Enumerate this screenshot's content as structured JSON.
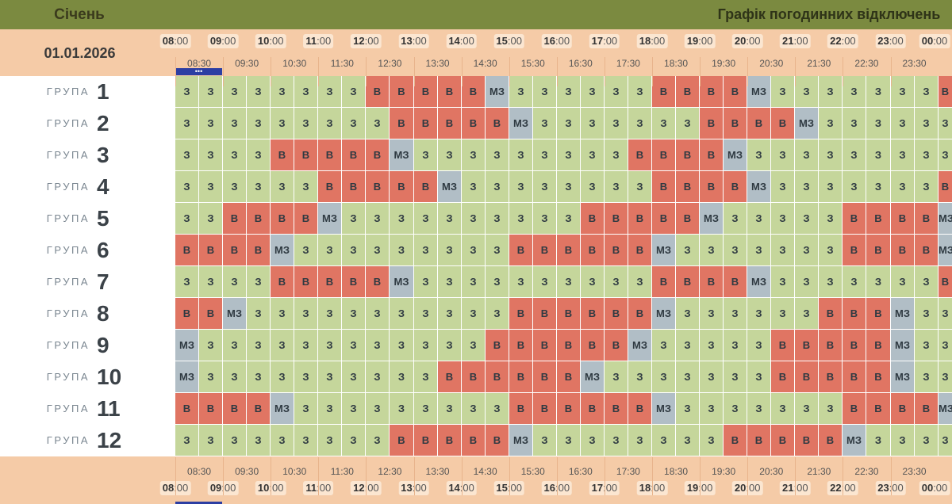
{
  "header": {
    "month": "Січень",
    "title": "Графік погодинних відключень",
    "date": "01.01.2026",
    "current_marker": "•••"
  },
  "group_label": "ГРУПА",
  "hours": [
    "08",
    "09",
    "10",
    "11",
    "12",
    "13",
    "14",
    "15",
    "16",
    "17",
    "18",
    "19",
    "20",
    "21",
    "22",
    "23",
    "00"
  ],
  "hour_suffix": ":00",
  "half_hours": [
    "08:30",
    "09:30",
    "10:30",
    "11:30",
    "12:30",
    "13:30",
    "14:30",
    "15:30",
    "16:30",
    "17:30",
    "18:30",
    "19:30",
    "20:30",
    "21:30",
    "22:30",
    "23:30"
  ],
  "status_labels": {
    "z": "З",
    "v": "В",
    "m": "МЗ"
  },
  "status_colors": {
    "z": "#c5d69b",
    "v": "#e07563",
    "m": "#b1bec6"
  },
  "groups": [
    {
      "num": "1",
      "cells": [
        "z",
        "z",
        "z",
        "z",
        "z",
        "z",
        "z",
        "z",
        "v",
        "v",
        "v",
        "v",
        "v",
        "m",
        "z",
        "z",
        "z",
        "z",
        "z",
        "z",
        "v",
        "v",
        "v",
        "v",
        "m",
        "z",
        "z",
        "z",
        "z",
        "z",
        "z",
        "z",
        "v"
      ]
    },
    {
      "num": "2",
      "cells": [
        "z",
        "z",
        "z",
        "z",
        "z",
        "z",
        "z",
        "z",
        "z",
        "v",
        "v",
        "v",
        "v",
        "v",
        "m",
        "z",
        "z",
        "z",
        "z",
        "z",
        "z",
        "z",
        "v",
        "v",
        "v",
        "v",
        "m",
        "z",
        "z",
        "z",
        "z",
        "z",
        "z"
      ]
    },
    {
      "num": "3",
      "cells": [
        "z",
        "z",
        "z",
        "z",
        "v",
        "v",
        "v",
        "v",
        "v",
        "m",
        "z",
        "z",
        "z",
        "z",
        "z",
        "z",
        "z",
        "z",
        "z",
        "v",
        "v",
        "v",
        "v",
        "m",
        "z",
        "z",
        "z",
        "z",
        "z",
        "z",
        "z",
        "z",
        "z"
      ]
    },
    {
      "num": "4",
      "cells": [
        "z",
        "z",
        "z",
        "z",
        "z",
        "z",
        "v",
        "v",
        "v",
        "v",
        "v",
        "m",
        "z",
        "z",
        "z",
        "z",
        "z",
        "z",
        "z",
        "z",
        "v",
        "v",
        "v",
        "v",
        "m",
        "z",
        "z",
        "z",
        "z",
        "z",
        "z",
        "z",
        "v"
      ]
    },
    {
      "num": "5",
      "cells": [
        "z",
        "z",
        "v",
        "v",
        "v",
        "v",
        "m",
        "z",
        "z",
        "z",
        "z",
        "z",
        "z",
        "z",
        "z",
        "z",
        "z",
        "v",
        "v",
        "v",
        "v",
        "v",
        "m",
        "z",
        "z",
        "z",
        "z",
        "z",
        "v",
        "v",
        "v",
        "v",
        "m"
      ]
    },
    {
      "num": "6",
      "cells": [
        "v",
        "v",
        "v",
        "v",
        "m",
        "z",
        "z",
        "z",
        "z",
        "z",
        "z",
        "z",
        "z",
        "z",
        "v",
        "v",
        "v",
        "v",
        "v",
        "v",
        "m",
        "z",
        "z",
        "z",
        "z",
        "z",
        "z",
        "z",
        "v",
        "v",
        "v",
        "v",
        "m"
      ]
    },
    {
      "num": "7",
      "cells": [
        "z",
        "z",
        "z",
        "z",
        "v",
        "v",
        "v",
        "v",
        "v",
        "m",
        "z",
        "z",
        "z",
        "z",
        "z",
        "z",
        "z",
        "z",
        "z",
        "z",
        "v",
        "v",
        "v",
        "v",
        "m",
        "z",
        "z",
        "z",
        "z",
        "z",
        "z",
        "z",
        "v"
      ]
    },
    {
      "num": "8",
      "cells": [
        "v",
        "v",
        "m",
        "z",
        "z",
        "z",
        "z",
        "z",
        "z",
        "z",
        "z",
        "z",
        "z",
        "z",
        "v",
        "v",
        "v",
        "v",
        "v",
        "v",
        "m",
        "z",
        "z",
        "z",
        "z",
        "z",
        "z",
        "v",
        "v",
        "v",
        "m",
        "z",
        "z"
      ]
    },
    {
      "num": "9",
      "cells": [
        "m",
        "z",
        "z",
        "z",
        "z",
        "z",
        "z",
        "z",
        "z",
        "z",
        "z",
        "z",
        "z",
        "v",
        "v",
        "v",
        "v",
        "v",
        "v",
        "m",
        "z",
        "z",
        "z",
        "z",
        "z",
        "v",
        "v",
        "v",
        "v",
        "v",
        "m",
        "z",
        "z"
      ]
    },
    {
      "num": "10",
      "cells": [
        "m",
        "z",
        "z",
        "z",
        "z",
        "z",
        "z",
        "z",
        "z",
        "z",
        "z",
        "v",
        "v",
        "v",
        "v",
        "v",
        "v",
        "m",
        "z",
        "z",
        "z",
        "z",
        "z",
        "z",
        "z",
        "v",
        "v",
        "v",
        "v",
        "v",
        "m",
        "z",
        "z"
      ]
    },
    {
      "num": "11",
      "cells": [
        "v",
        "v",
        "v",
        "v",
        "m",
        "z",
        "z",
        "z",
        "z",
        "z",
        "z",
        "z",
        "z",
        "z",
        "v",
        "v",
        "v",
        "v",
        "v",
        "v",
        "m",
        "z",
        "z",
        "z",
        "z",
        "z",
        "z",
        "z",
        "v",
        "v",
        "v",
        "v",
        "m"
      ]
    },
    {
      "num": "12",
      "cells": [
        "z",
        "z",
        "z",
        "z",
        "z",
        "z",
        "z",
        "z",
        "z",
        "v",
        "v",
        "v",
        "v",
        "v",
        "m",
        "z",
        "z",
        "z",
        "z",
        "z",
        "z",
        "z",
        "z",
        "v",
        "v",
        "v",
        "v",
        "v",
        "m",
        "z",
        "z",
        "z",
        "z"
      ]
    }
  ]
}
